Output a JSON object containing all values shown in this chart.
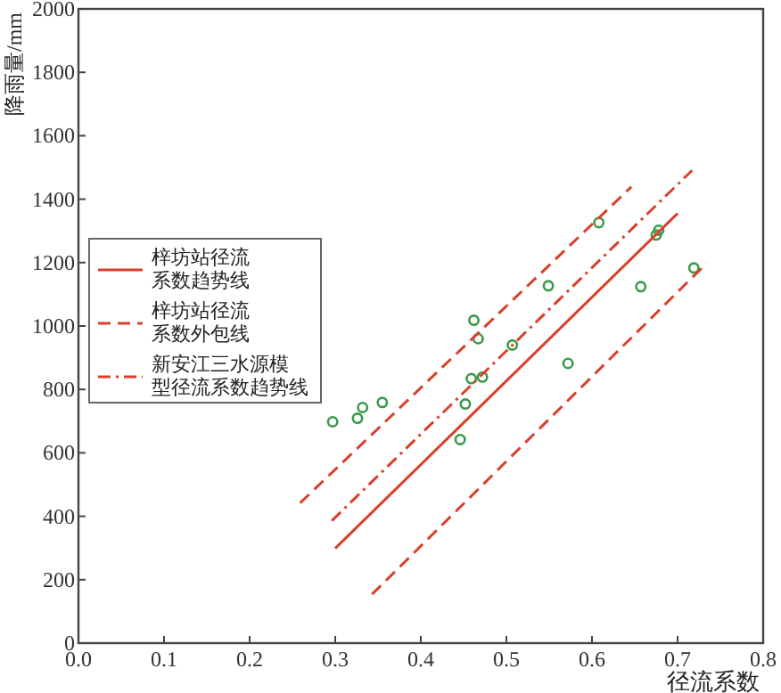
{
  "chart_data": {
    "type": "scatter",
    "xlabel": "径流系数",
    "ylabel": "降雨量/mm",
    "xlim": [
      0,
      0.8
    ],
    "ylim": [
      0,
      2000
    ],
    "xticks": [
      {
        "value": 0,
        "label": "0.0"
      },
      {
        "value": 0.1,
        "label": "0.1"
      },
      {
        "value": 0.2,
        "label": "0.2"
      },
      {
        "value": 0.3,
        "label": "0.3"
      },
      {
        "value": 0.4,
        "label": "0.4"
      },
      {
        "value": 0.5,
        "label": "0.5"
      },
      {
        "value": 0.6,
        "label": "0.6"
      },
      {
        "value": 0.7,
        "label": "0.7"
      },
      {
        "value": 0.8,
        "label": "0.8"
      }
    ],
    "yticks": [
      0,
      200,
      400,
      600,
      800,
      1000,
      1200,
      1400,
      1600,
      1800,
      2000
    ],
    "grid": false,
    "legend": "left",
    "series": [
      {
        "marker": "circle",
        "color": "#3a9a4a",
        "x": [
          0.297,
          0.326,
          0.332,
          0.355,
          0.446,
          0.452,
          0.459,
          0.472,
          0.462,
          0.467,
          0.507,
          0.549,
          0.572,
          0.608,
          0.657,
          0.675,
          0.678,
          0.719
        ],
        "values": [
          698,
          709,
          743,
          759,
          642,
          754,
          834,
          839,
          1018,
          960,
          940,
          1127,
          882,
          1326,
          1124,
          1287,
          1302,
          1183
        ]
      },
      {
        "type": "line",
        "name": "梓坊站径流系数趋势线",
        "color": "#d9402a",
        "line_style": "solid",
        "x": [
          0.3,
          0.7
        ],
        "values": [
          299,
          1355
        ]
      },
      {
        "type": "line",
        "name": "梓坊站径流系数外包线",
        "color": "#d9402a",
        "line_style": "dashed",
        "x": [
          0.259,
          0.646
        ],
        "values": [
          442,
          1439
        ]
      },
      {
        "type": "line",
        "color": "#d9402a",
        "line_style": "dashed",
        "x": [
          0.343,
          0.734
        ],
        "values": [
          154,
          1198
        ]
      },
      {
        "type": "line",
        "name": "新安江三水源模型径流系数趋势线",
        "color": "#d9402a",
        "line_style": "dashdot",
        "x": [
          0.296,
          0.717
        ],
        "values": [
          386,
          1491
        ]
      }
    ]
  }
}
